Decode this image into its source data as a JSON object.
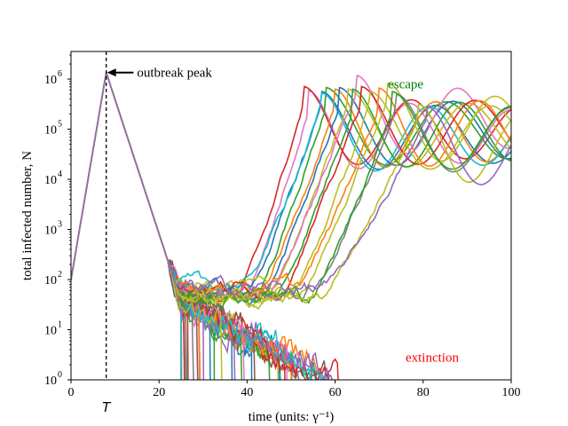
{
  "chart_data": {
    "type": "line",
    "xlabel": "time (units: γ⁻¹)",
    "ylabel": "total infected number, N",
    "xlim": [
      0,
      100
    ],
    "ylim_log10": [
      0,
      6.55
    ],
    "yscale": "log",
    "x_ticks": [
      0,
      20,
      40,
      60,
      80,
      100
    ],
    "y_ticks": [
      {
        "exp": 0,
        "label": "10",
        "sup": "0"
      },
      {
        "exp": 1,
        "label": "10",
        "sup": "1"
      },
      {
        "exp": 2,
        "label": "10",
        "sup": "2"
      },
      {
        "exp": 3,
        "label": "10",
        "sup": "3"
      },
      {
        "exp": 4,
        "label": "10",
        "sup": "4"
      },
      {
        "exp": 5,
        "label": "10",
        "sup": "5"
      },
      {
        "exp": 6,
        "label": "10",
        "sup": "6"
      }
    ],
    "grid": false,
    "reference_line": {
      "x": 8,
      "label": "T"
    },
    "annotations": {
      "peak": {
        "text": "outbreak peak",
        "x": 8,
        "y_log10": 6.13,
        "text_x": 15,
        "text_y_log10": 6.13
      },
      "escape": {
        "text": "escape",
        "x": 72,
        "y_log10": 5.9,
        "color": "#008000"
      },
      "extinction": {
        "text": "extinction",
        "x": 76,
        "y_log10": 0.45,
        "color": "#ff0000"
      }
    },
    "peak": {
      "t": 8,
      "log10_N": 6.13
    },
    "colors": [
      "#1f77b4",
      "#ff7f0e",
      "#2ca02c",
      "#d62728",
      "#9467bd",
      "#8c564b",
      "#e377c2",
      "#7f7f7f",
      "#bcbd22",
      "#17becf"
    ],
    "escape_series": [
      {
        "color": "#e377c2",
        "t_min": 40,
        "t_rise_end": 54,
        "rise_to": 5.42
      },
      {
        "color": "#d62728",
        "t_min": 38,
        "t_rise_end": 53,
        "rise_to": 5.55
      },
      {
        "color": "#1f77b4",
        "t_min": 41,
        "t_rise_end": 57,
        "rise_to": 5.5
      },
      {
        "color": "#2ca02c",
        "t_min": 42,
        "t_rise_end": 58,
        "rise_to": 5.48
      },
      {
        "color": "#ff7f0e",
        "t_min": 43,
        "t_rise_end": 60,
        "rise_to": 5.5
      },
      {
        "color": "#17becf",
        "t_min": 40,
        "t_rise_end": 57,
        "rise_to": 5.47
      },
      {
        "color": "#1f77b4",
        "t_min": 44,
        "t_rise_end": 61,
        "rise_to": 5.48
      },
      {
        "color": "#bcbd22",
        "t_min": 46,
        "t_rise_end": 63,
        "rise_to": 5.5
      },
      {
        "color": "#e377c2",
        "t_min": 45,
        "t_rise_end": 65,
        "rise_to": 5.82
      },
      {
        "color": "#2ca02c",
        "t_min": 47,
        "t_rise_end": 64,
        "rise_to": 5.45
      },
      {
        "color": "#d62728",
        "t_min": 48,
        "t_rise_end": 66,
        "rise_to": 5.55
      },
      {
        "color": "#bcbd22",
        "t_min": 50,
        "t_rise_end": 68,
        "rise_to": 5.5
      },
      {
        "color": "#ff7f0e",
        "t_min": 52,
        "t_rise_end": 70,
        "rise_to": 5.47
      },
      {
        "color": "#bcbd22",
        "t_min": 52,
        "t_rise_end": 72,
        "rise_to": 5.62
      },
      {
        "color": "#7f7f7f",
        "t_min": 55,
        "t_rise_end": 74,
        "rise_to": 5.45
      },
      {
        "color": "#2ca02c",
        "t_min": 55,
        "t_rise_end": 73,
        "rise_to": 5.4
      },
      {
        "color": "#bcbd22",
        "t_min": 57,
        "t_rise_end": 79,
        "rise_to": 5.2
      },
      {
        "color": "#9467bd",
        "t_min": 58,
        "t_rise_end": 81,
        "rise_to": 5.2
      }
    ],
    "extinction_end_range": [
      25,
      82
    ],
    "extinction_count": 40
  }
}
